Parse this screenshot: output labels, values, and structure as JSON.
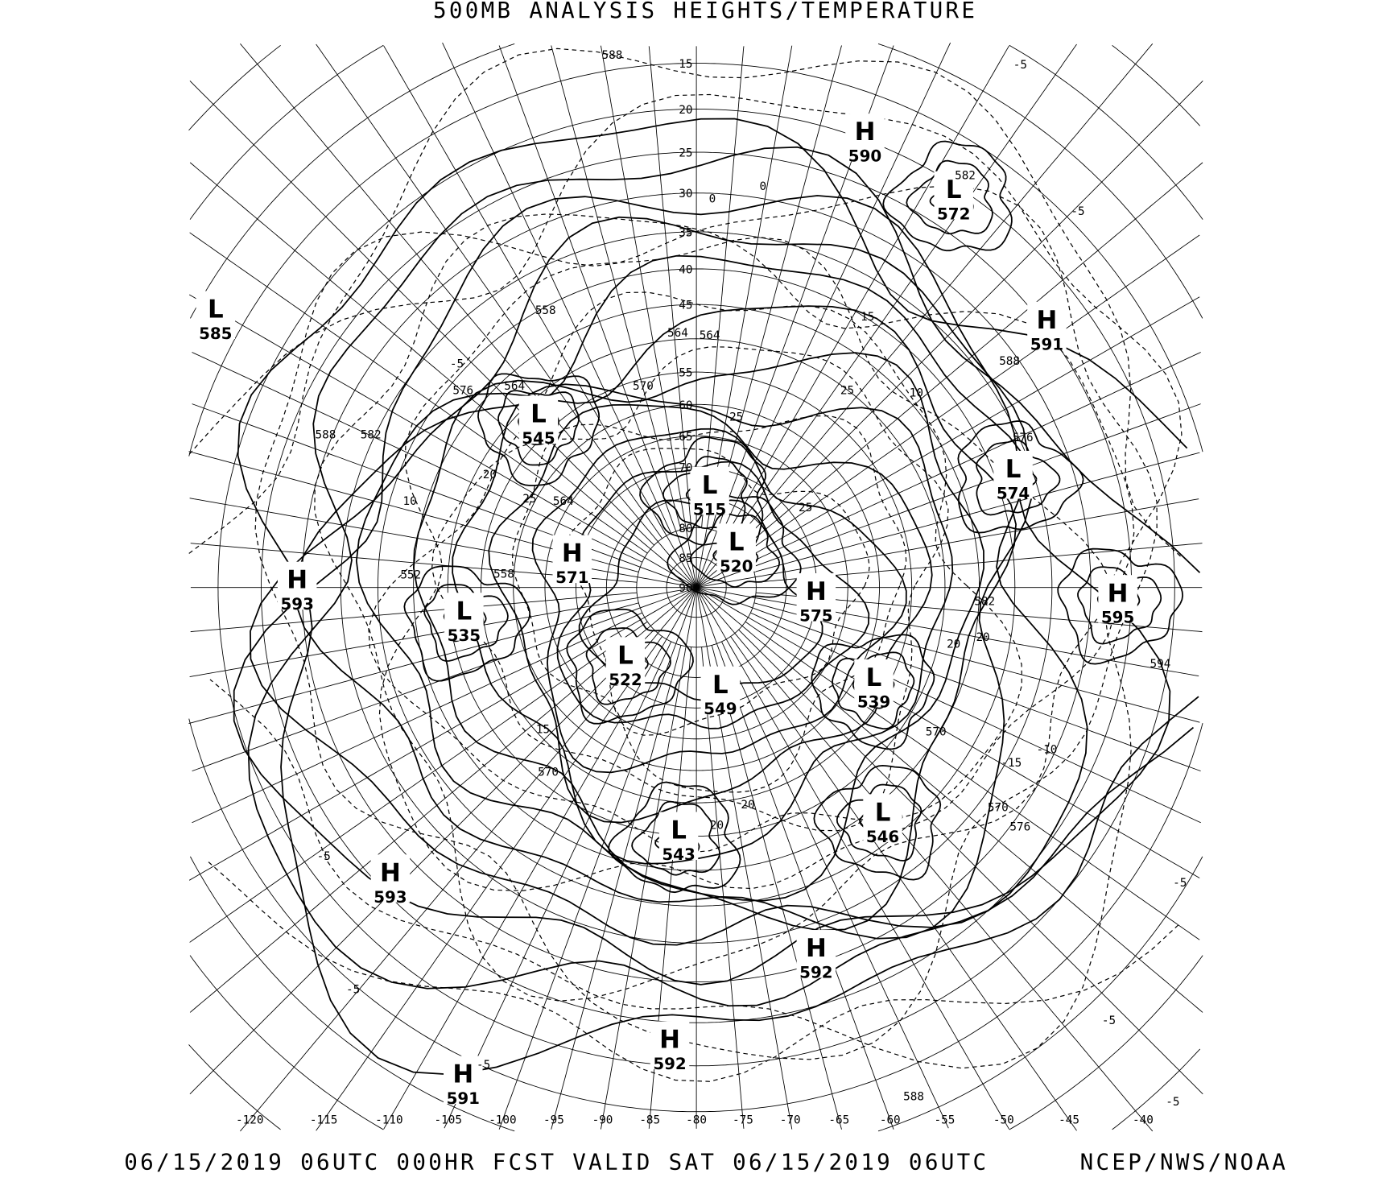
{
  "title": "500MB ANALYSIS  HEIGHTS/TEMPERATURE",
  "footer": {
    "left": "06/15/2019 06UTC 000HR FCST VALID SAT 06/15/2019 06UTC",
    "right": "NCEP/NWS/NOAA"
  },
  "map": {
    "projection": "polar stereographic (north)",
    "latitude_labels": [
      "15",
      "20",
      "25",
      "30",
      "35",
      "40",
      "45",
      "55",
      "60",
      "65",
      "70",
      "80",
      "85",
      "90"
    ],
    "longitude_labels": [
      "-120",
      "-115",
      "-110",
      "-105",
      "-100",
      "-95",
      "-90",
      "-85",
      "-80",
      "-75",
      "-70",
      "-65",
      "-60",
      "-55",
      "-50",
      "-45",
      "-40"
    ],
    "pressure_centers": [
      {
        "type": "L",
        "value": "585"
      },
      {
        "type": "H",
        "value": "593"
      },
      {
        "type": "L",
        "value": "535"
      },
      {
        "type": "L",
        "value": "545"
      },
      {
        "type": "H",
        "value": "571"
      },
      {
        "type": "L",
        "value": "515"
      },
      {
        "type": "L",
        "value": "520"
      },
      {
        "type": "H",
        "value": "575"
      },
      {
        "type": "L",
        "value": "522"
      },
      {
        "type": "L",
        "value": "549"
      },
      {
        "type": "L",
        "value": "539"
      },
      {
        "type": "L",
        "value": "546"
      },
      {
        "type": "L",
        "value": "543"
      },
      {
        "type": "H",
        "value": "593"
      },
      {
        "type": "H",
        "value": "592"
      },
      {
        "type": "H",
        "value": "592"
      },
      {
        "type": "H",
        "value": "591"
      },
      {
        "type": "H",
        "value": "590"
      },
      {
        "type": "L",
        "value": "572"
      },
      {
        "type": "H",
        "value": "591"
      },
      {
        "type": "L",
        "value": "574"
      },
      {
        "type": "H",
        "value": "595"
      }
    ],
    "height_labels": [
      "588",
      "558",
      "564",
      "564",
      "570",
      "576",
      "564",
      "588",
      "582",
      "564",
      "552",
      "558",
      "582",
      "594",
      "570",
      "576",
      "570",
      "570",
      "588",
      "576",
      "588",
      "582"
    ],
    "temperature_labels": [
      "-5",
      "-5",
      "0",
      "0",
      "15",
      "10",
      "-5",
      "20",
      "10",
      "25",
      "25",
      "25",
      "25",
      "-15",
      "-10",
      "20",
      "-5",
      "-5",
      "-5",
      "-5",
      "-5",
      "20",
      "20",
      "15",
      "20",
      "-5"
    ]
  }
}
